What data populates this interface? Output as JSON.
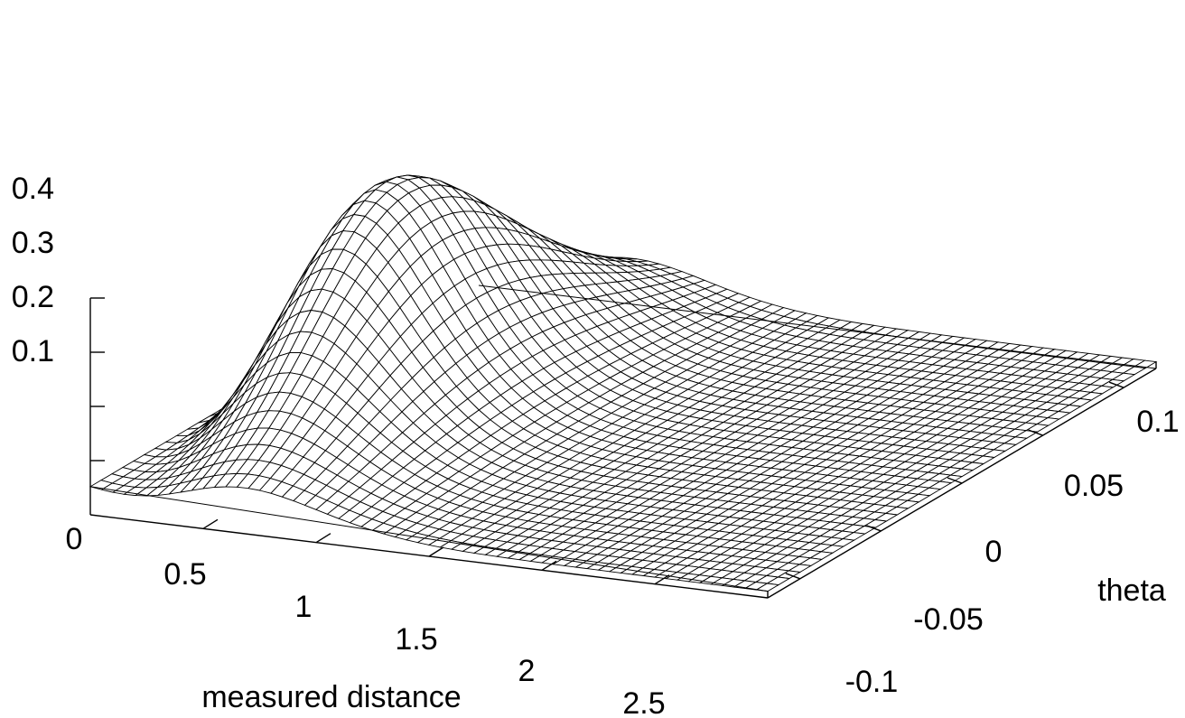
{
  "chart_data": {
    "type": "surface",
    "title": "",
    "xlabel": "measured distance",
    "ylabel": "theta",
    "zlabel": "",
    "x_range": [
      0,
      3
    ],
    "y_range": [
      -0.12,
      0.12
    ],
    "z_range": [
      0,
      0.4
    ],
    "x_ticks": [
      "0",
      "0.5",
      "1",
      "1.5",
      "2",
      "2.5"
    ],
    "y_ticks": [
      "-0.1",
      "-0.05",
      "0",
      "0.05",
      "0.1"
    ],
    "z_ticks": [
      "0.1",
      "0.2",
      "0.3",
      "0.4"
    ],
    "grid": false,
    "colors": {
      "line": "#000000",
      "background": "#ffffff"
    }
  }
}
